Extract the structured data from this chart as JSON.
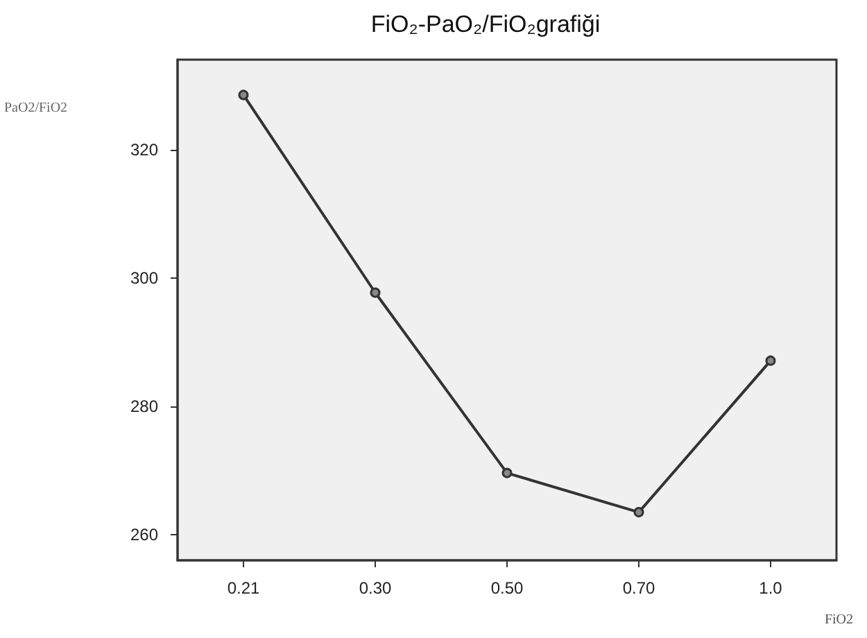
{
  "chart_data": {
    "type": "line",
    "title": "FiO₂-PaO₂/FiO₂grafiği",
    "xlabel": "FiO2",
    "ylabel": "PaO2/FiO2",
    "categories": [
      "0.21",
      "0.30",
      "0.50",
      "0.70",
      "1.0"
    ],
    "series": [
      {
        "color": "#333333",
        "values": [
          328.5,
          297.7,
          269.6,
          263.5,
          287.1
        ]
      }
    ],
    "ylim": [
      256,
      334
    ],
    "yticks": [
      260,
      280,
      300,
      320
    ],
    "grid": false,
    "marker": "circle",
    "line_style": "solid"
  }
}
